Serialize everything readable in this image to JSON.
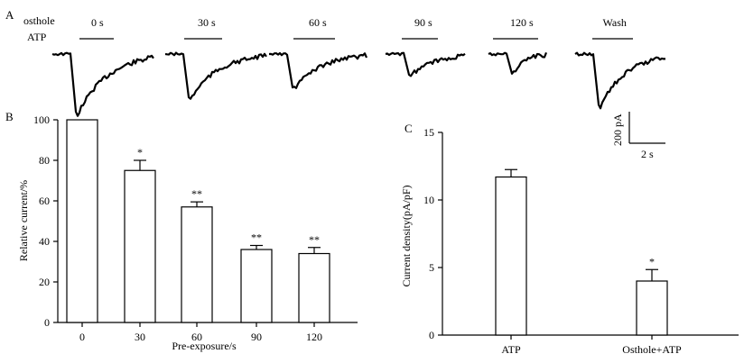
{
  "panel_labels": {
    "a": "A",
    "b": "B",
    "c": "C"
  },
  "traces": {
    "row_labels": [
      "osthole",
      "ATP"
    ],
    "conditions": [
      {
        "label": "0 s",
        "peak": 1.0,
        "decay": 0.55
      },
      {
        "label": "30 s",
        "peak": 0.75,
        "decay": 0.5
      },
      {
        "label": "60 s",
        "peak": 0.58,
        "decay": 0.5
      },
      {
        "label": "90 s",
        "peak": 0.36,
        "decay": 0.6
      },
      {
        "label": "120 s",
        "peak": 0.34,
        "decay": 0.45
      },
      {
        "label": "Wash",
        "peak": 0.88,
        "decay": 0.55
      }
    ],
    "scalebar": {
      "y_label": "200 pA",
      "x_label": "2 s"
    }
  },
  "chart_data": [
    {
      "type": "bar",
      "panel": "B",
      "categories": [
        "0",
        "30",
        "60",
        "90",
        "120"
      ],
      "values": [
        100,
        75,
        57,
        36,
        34
      ],
      "errors": [
        0,
        5,
        2.5,
        2,
        3
      ],
      "significance": [
        "",
        "*",
        "**",
        "**",
        "**"
      ],
      "xlabel": "Pre-exposure/s",
      "ylabel": "Relative current/%",
      "ylim": [
        0,
        100
      ],
      "yticks": [
        0,
        20,
        40,
        60,
        80,
        100
      ]
    },
    {
      "type": "bar",
      "panel": "C",
      "categories": [
        "ATP",
        "Osthole+ATP"
      ],
      "values": [
        11.7,
        4.0
      ],
      "errors": [
        0.55,
        0.85
      ],
      "significance": [
        "",
        "*"
      ],
      "xlabel": "",
      "ylabel": "Current density(pA/pF)",
      "ylim": [
        0,
        15
      ],
      "yticks": [
        0,
        5,
        10,
        15
      ]
    }
  ]
}
